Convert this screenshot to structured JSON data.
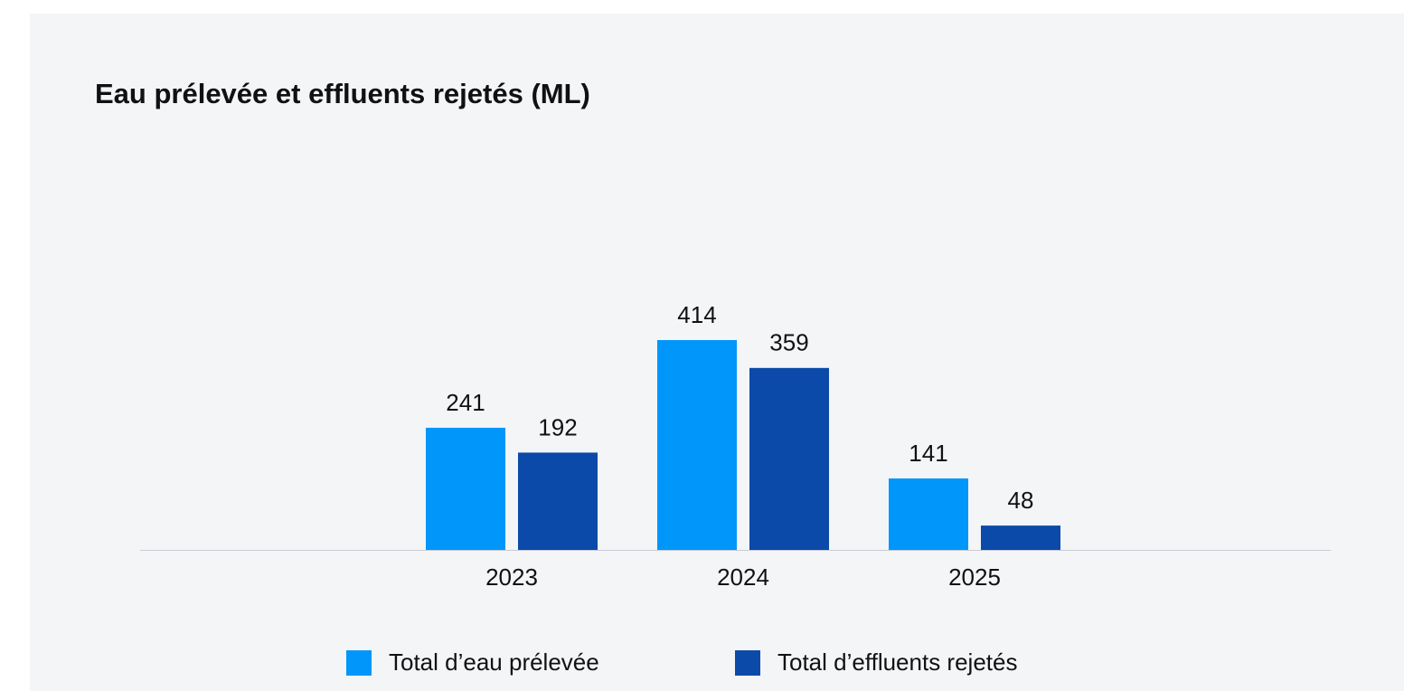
{
  "chart_data": {
    "type": "bar",
    "title": "Eau prélevée et effluents rejetés (ML)",
    "categories": [
      "2023",
      "2024",
      "2025"
    ],
    "series": [
      {
        "name": "Total d’eau prélevée",
        "color": "#0096fa",
        "values": [
          241,
          414,
          141
        ]
      },
      {
        "name": "Total d’effluents rejetés",
        "color": "#0b4aa8",
        "values": [
          192,
          359,
          48
        ]
      }
    ],
    "legend": "bottom"
  }
}
